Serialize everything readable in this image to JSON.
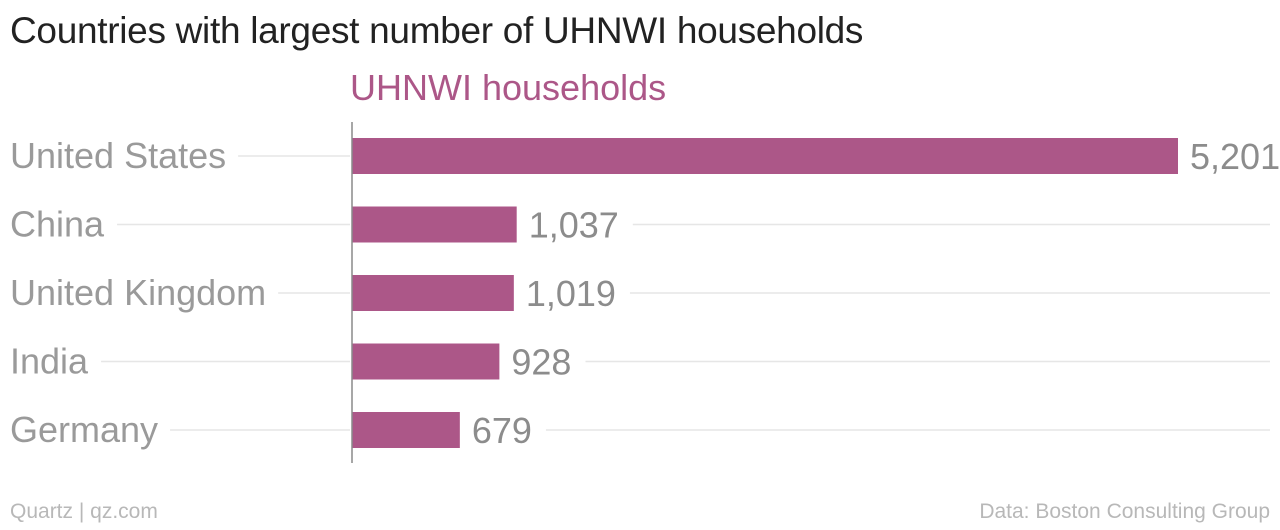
{
  "title": "Countries with largest number of UHNWI households",
  "footer": {
    "source_left": "Quartz | qz.com",
    "source_right": "Data: Boston Consulting Group"
  },
  "colors": {
    "bar": "#ac5788",
    "category_text": "#9a9a9a",
    "value_text": "#8c8c8c",
    "gridline": "#e6e6e6",
    "axis": "#8a8a8a"
  },
  "chart_data": {
    "type": "bar",
    "orientation": "horizontal",
    "title": "Countries with largest number of UHNWI households",
    "categories": [
      "United States",
      "China",
      "United Kingdom",
      "India",
      "Germany"
    ],
    "series": [
      {
        "name": "UHNWI households",
        "values": [
          5201,
          1037,
          1019,
          928,
          679
        ],
        "labels": [
          "5,201",
          "1,037",
          "1,019",
          "928",
          "679"
        ]
      }
    ],
    "xlim": [
      0,
      5201
    ],
    "grid": true,
    "legend": "top"
  }
}
